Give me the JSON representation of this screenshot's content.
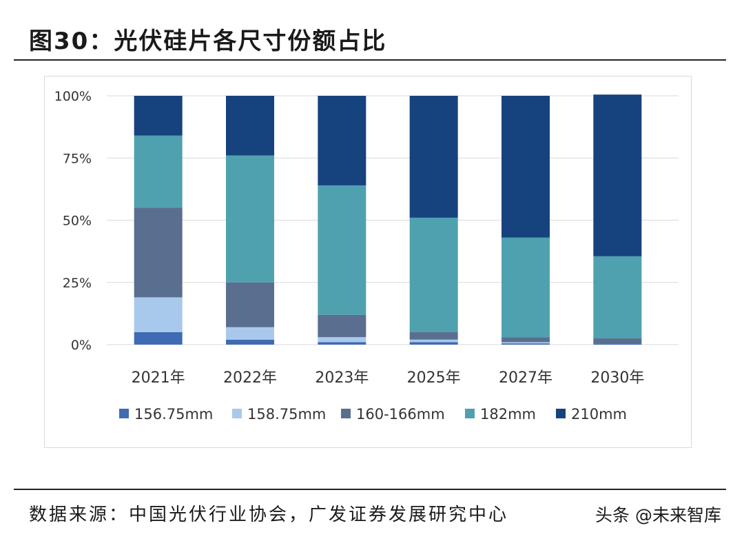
{
  "page": {
    "title": "图30：光伏硅片各尺寸份额占比",
    "source": "数据来源：中国光伏行业协会，广发证券发展研究中心",
    "watermark": "头条 @未来智库"
  },
  "chart_data": {
    "type": "bar",
    "stacked": true,
    "title": "",
    "xlabel": "",
    "ylabel": "",
    "ylim": [
      0,
      100
    ],
    "yticks": [
      "0%",
      "25%",
      "50%",
      "75%",
      "100%"
    ],
    "categories": [
      "2021年",
      "2022年",
      "2023年",
      "2025年",
      "2027年",
      "2030年"
    ],
    "series": [
      {
        "name": "156.75mm",
        "color": "#3f6bb4",
        "values": [
          5,
          2,
          1,
          1,
          0.5,
          0.5
        ]
      },
      {
        "name": "158.75mm",
        "color": "#a9c9ec",
        "values": [
          14,
          5,
          2,
          1,
          0.5,
          0
        ]
      },
      {
        "name": "160-166mm",
        "color": "#5a6f8f",
        "values": [
          36,
          18,
          9,
          3,
          2,
          2
        ]
      },
      {
        "name": "182mm",
        "color": "#4fa1b0",
        "values": [
          29,
          51,
          52,
          46,
          40,
          33
        ]
      },
      {
        "name": "210mm",
        "color": "#16437d",
        "values": [
          16,
          24,
          36,
          49,
          57,
          65
        ]
      }
    ],
    "legend_position": "bottom",
    "grid": true
  }
}
